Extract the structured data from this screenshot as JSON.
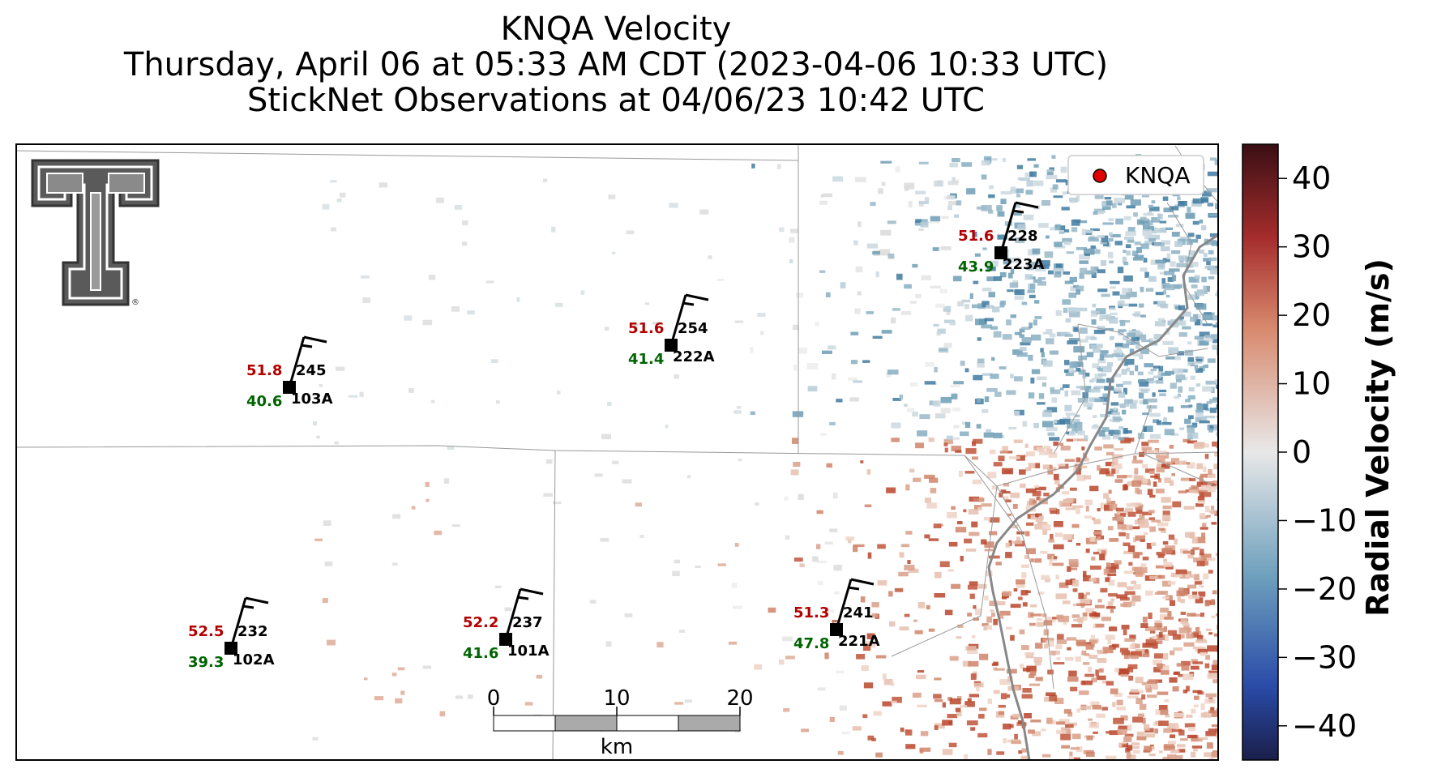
{
  "title": {
    "line1": "KNQA Velocity",
    "line2": "Thursday, April 06 at 05:33 AM CDT (2023-04-06 10:33 UTC)",
    "line3": "StickNet Observations at 04/06/23 10:42 UTC"
  },
  "legend": {
    "label": "KNQA",
    "marker_color": "#e00000"
  },
  "colorbar": {
    "label": "Radial Velocity (m/s)",
    "ticks": [
      "40",
      "30",
      "20",
      "10",
      "0",
      "−10",
      "−20",
      "−30",
      "−40"
    ],
    "range": [
      -45,
      45
    ]
  },
  "scale_bar": {
    "ticks": [
      "0",
      "10",
      "20"
    ],
    "unit": "km"
  },
  "logo": {
    "name": "texas-tech-double-t-logo"
  },
  "stations": [
    {
      "id": "223A",
      "temp": "51.6",
      "dew": "43.9",
      "dir": "228"
    },
    {
      "id": "222A",
      "temp": "51.6",
      "dew": "41.4",
      "dir": "254"
    },
    {
      "id": "103A",
      "temp": "51.8",
      "dew": "40.6",
      "dir": "245"
    },
    {
      "id": "102A",
      "temp": "52.5",
      "dew": "39.3",
      "dir": "232"
    },
    {
      "id": "101A",
      "temp": "52.2",
      "dew": "41.6",
      "dir": "237"
    },
    {
      "id": "221A",
      "temp": "51.3",
      "dew": "47.8",
      "dir": "241"
    }
  ],
  "colors": {
    "inbound": "#4a84a8",
    "outbound": "#c0553a",
    "zero": "#e8e8e8"
  }
}
